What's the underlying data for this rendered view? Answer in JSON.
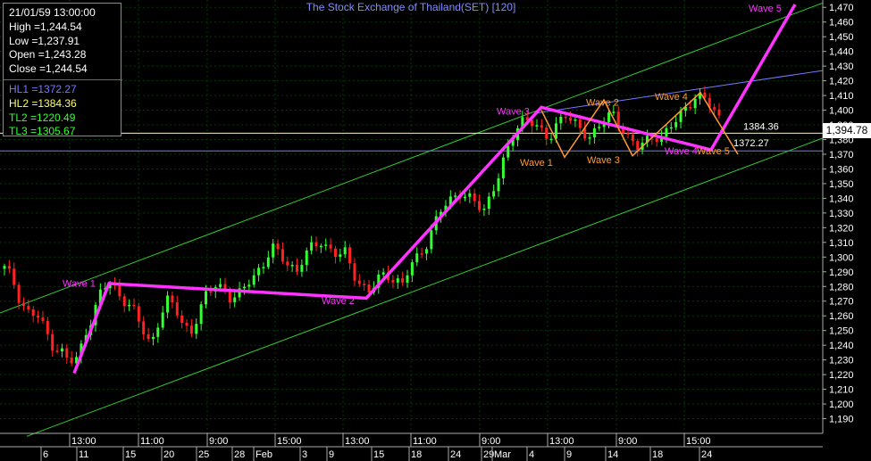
{
  "chart_data": {
    "type": "candlestick",
    "title": "The Stock Exchange of Thailand(SET) [120]",
    "colors": {
      "up": "#33ff33",
      "down": "#ff2222",
      "wave_main": "#ff33ff",
      "wave_minor": "#ff9933",
      "channel": "#33cc33",
      "hl1": "#7777ff",
      "hl2": "#ffff66",
      "grid": "#003b00",
      "title": "#8888ff",
      "axis_text": "#ffffff"
    },
    "y_axis": {
      "min": 1180,
      "max": 1475,
      "ticks": [
        1190,
        1200,
        1210,
        1220,
        1230,
        1240,
        1250,
        1260,
        1270,
        1280,
        1290,
        1300,
        1310,
        1320,
        1330,
        1340,
        1350,
        1360,
        1370,
        1380,
        1390,
        1400,
        1410,
        1420,
        1430,
        1440,
        1450,
        1460,
        1470
      ]
    },
    "x_axis": {
      "time_labels": [
        "13:00",
        "11:00",
        "9:00",
        "15:00",
        "13:00",
        "11:00",
        "9:00",
        "13:00",
        "9:00",
        "15:00"
      ],
      "date_labels": [
        "6",
        "11",
        "15",
        "20",
        "25",
        "28",
        "Feb",
        "3",
        "9",
        "15",
        "18",
        "24",
        "29",
        "Mar",
        "4",
        "9",
        "14",
        "18",
        "24"
      ]
    },
    "info": {
      "date": "21/01/59 13:00:00",
      "high": "High  =1,244.54",
      "low": "Low  =1,237.91",
      "open": "Open  =1,243.28",
      "close": "Close  =1,244.54",
      "hl1": "HL1 =1372.27",
      "hl2": "HL2 =1384.36",
      "tl2": "TL2 =1220.49",
      "tl3": "TL3 =1305.67"
    },
    "last_price": "1,394.78",
    "levels": {
      "hl1": 1372.27,
      "hl2": 1384.36,
      "hl1_label": "1372.27",
      "hl2_label": "1384.36"
    },
    "wave_labels": [
      "Wave 1",
      "Wave 2",
      "Wave 3",
      "Wave 1",
      "Wave 2",
      "Wave 3",
      "Wave 4",
      "Wave 4",
      "Wave 5",
      "Wave 5"
    ],
    "path_closes": [
      1292,
      1285,
      1270,
      1262,
      1260,
      1250,
      1240,
      1236,
      1228,
      1230,
      1250,
      1262,
      1278,
      1282,
      1276,
      1270,
      1262,
      1250,
      1240,
      1258,
      1270,
      1265,
      1254,
      1250,
      1262,
      1275,
      1282,
      1280,
      1270,
      1274,
      1284,
      1290,
      1296,
      1305,
      1302,
      1296,
      1290,
      1300,
      1308,
      1312,
      1305,
      1300,
      1303,
      1290,
      1280,
      1275,
      1285,
      1290,
      1285,
      1280,
      1294,
      1302,
      1310,
      1322,
      1334,
      1340,
      1345,
      1340,
      1336,
      1332,
      1345,
      1358,
      1372,
      1388,
      1396,
      1392,
      1384,
      1380,
      1392,
      1398,
      1390,
      1386,
      1383,
      1388,
      1394,
      1396,
      1390,
      1380,
      1374,
      1378,
      1384,
      1382,
      1388,
      1394,
      1403,
      1410,
      1408,
      1402,
      1394.78
    ]
  }
}
